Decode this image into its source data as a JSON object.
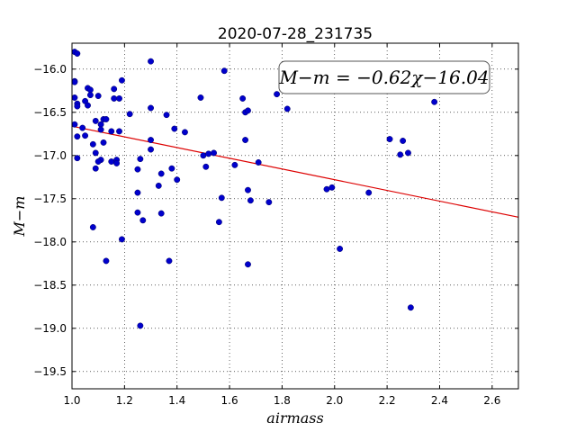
{
  "chart_data": {
    "type": "scatter",
    "title": "2020-07-28_231735",
    "xlabel": "airmass",
    "ylabel": "M−m",
    "xlim": [
      1.0,
      2.7
    ],
    "ylim": [
      -19.7,
      -15.7
    ],
    "y_inverted": true,
    "grid": true,
    "xticks": [
      1.0,
      1.2,
      1.4,
      1.6,
      1.8,
      2.0,
      2.2,
      2.4,
      2.6
    ],
    "xtick_labels": [
      "1.0",
      "1.2",
      "1.4",
      "1.6",
      "1.8",
      "2.0",
      "2.2",
      "2.4",
      "2.6"
    ],
    "yticks": [
      -16.0,
      -16.5,
      -17.0,
      -17.5,
      -18.0,
      -18.5,
      -19.0,
      -19.5
    ],
    "ytick_labels": [
      "−16.0",
      "−16.5",
      "−17.0",
      "−17.5",
      "−18.0",
      "−18.5",
      "−19.0",
      "−19.5"
    ],
    "annotation": "M−m = −0.62χ−16.04",
    "colors": {
      "points": "#0000cc",
      "fit_line": "#dd0000"
    },
    "fit": {
      "slope": -0.62,
      "intercept": -16.04
    },
    "points": [
      [
        1.01,
        -15.8
      ],
      [
        1.02,
        -15.82
      ],
      [
        1.01,
        -16.14
      ],
      [
        1.01,
        -16.15
      ],
      [
        1.01,
        -16.33
      ],
      [
        1.02,
        -16.4
      ],
      [
        1.02,
        -16.43
      ],
      [
        1.01,
        -16.64
      ],
      [
        1.04,
        -16.68
      ],
      [
        1.05,
        -16.37
      ],
      [
        1.06,
        -16.22
      ],
      [
        1.06,
        -16.42
      ],
      [
        1.07,
        -16.24
      ],
      [
        1.07,
        -16.3
      ],
      [
        1.02,
        -16.78
      ],
      [
        1.05,
        -16.77
      ],
      [
        1.08,
        -16.87
      ],
      [
        1.09,
        -16.97
      ],
      [
        1.09,
        -16.6
      ],
      [
        1.1,
        -16.31
      ],
      [
        1.11,
        -16.64
      ],
      [
        1.12,
        -16.58
      ],
      [
        1.13,
        -16.58
      ],
      [
        1.11,
        -16.7
      ],
      [
        1.12,
        -16.85
      ],
      [
        1.11,
        -17.05
      ],
      [
        1.1,
        -17.07
      ],
      [
        1.09,
        -17.15
      ],
      [
        1.02,
        -17.03
      ],
      [
        1.15,
        -17.07
      ],
      [
        1.17,
        -17.05
      ],
      [
        1.16,
        -16.34
      ],
      [
        1.16,
        -16.23
      ],
      [
        1.18,
        -16.34
      ],
      [
        1.19,
        -16.13
      ],
      [
        1.15,
        -16.72
      ],
      [
        1.18,
        -16.72
      ],
      [
        1.17,
        -17.09
      ],
      [
        1.08,
        -17.83
      ],
      [
        1.13,
        -18.22
      ],
      [
        1.19,
        -17.97
      ],
      [
        1.22,
        -16.52
      ],
      [
        1.25,
        -17.16
      ],
      [
        1.26,
        -17.04
      ],
      [
        1.25,
        -17.43
      ],
      [
        1.25,
        -17.66
      ],
      [
        1.27,
        -17.75
      ],
      [
        1.26,
        -18.97
      ],
      [
        1.3,
        -15.91
      ],
      [
        1.3,
        -16.45
      ],
      [
        1.3,
        -16.82
      ],
      [
        1.3,
        -16.93
      ],
      [
        1.33,
        -17.35
      ],
      [
        1.34,
        -17.21
      ],
      [
        1.34,
        -17.67
      ],
      [
        1.36,
        -16.53
      ],
      [
        1.37,
        -18.22
      ],
      [
        1.38,
        -17.15
      ],
      [
        1.39,
        -16.69
      ],
      [
        1.4,
        -17.28
      ],
      [
        1.43,
        -16.73
      ],
      [
        1.49,
        -16.33
      ],
      [
        1.5,
        -17.0
      ],
      [
        1.51,
        -17.13
      ],
      [
        1.52,
        -16.98
      ],
      [
        1.54,
        -16.97
      ],
      [
        1.56,
        -17.77
      ],
      [
        1.57,
        -17.49
      ],
      [
        1.58,
        -16.02
      ],
      [
        1.62,
        -17.11
      ],
      [
        1.65,
        -16.34
      ],
      [
        1.66,
        -16.5
      ],
      [
        1.66,
        -16.82
      ],
      [
        1.67,
        -16.48
      ],
      [
        1.67,
        -17.4
      ],
      [
        1.68,
        -17.52
      ],
      [
        1.67,
        -18.26
      ],
      [
        1.71,
        -17.08
      ],
      [
        1.75,
        -17.54
      ],
      [
        1.78,
        -16.29
      ],
      [
        1.82,
        -16.46
      ],
      [
        1.97,
        -17.39
      ],
      [
        1.99,
        -17.37
      ],
      [
        2.02,
        -18.08
      ],
      [
        2.13,
        -17.43
      ],
      [
        2.21,
        -16.81
      ],
      [
        2.25,
        -16.99
      ],
      [
        2.26,
        -16.83
      ],
      [
        2.28,
        -16.97
      ],
      [
        2.29,
        -18.76
      ],
      [
        2.38,
        -16.38
      ]
    ]
  }
}
